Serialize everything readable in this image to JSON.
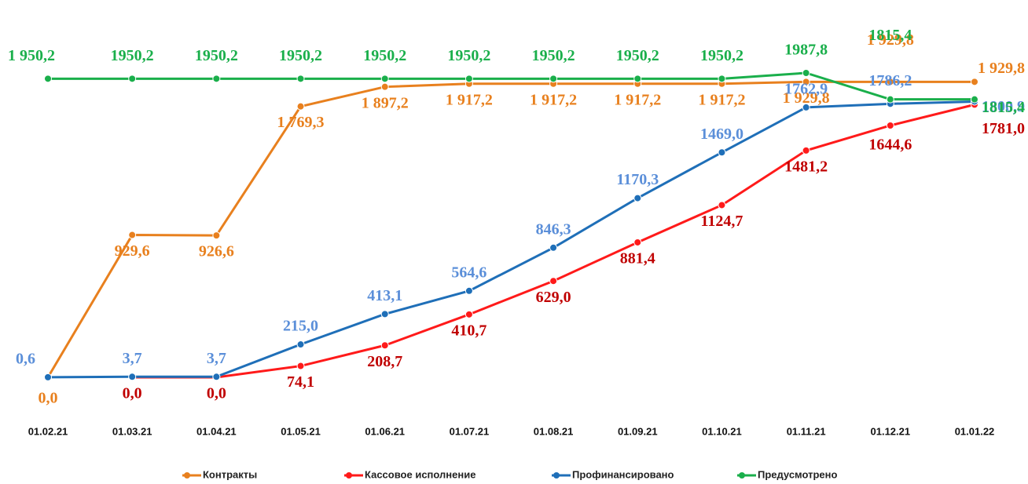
{
  "chart_data": {
    "type": "line",
    "categories": [
      "01.02.21",
      "01.03.21",
      "01.04.21",
      "01.05.21",
      "01.06.21",
      "01.07.21",
      "01.08.21",
      "01.09.21",
      "01.10.21",
      "01.11.21",
      "01.12.21",
      "01.01.22"
    ],
    "series": [
      {
        "name": "Контракты",
        "color": "#E8801E",
        "label_color": "#E8801E",
        "values": [
          0.0,
          929.6,
          926.6,
          1769.3,
          1897.2,
          1917.2,
          1917.2,
          1917.2,
          1917.2,
          1929.8,
          1929.8,
          1929.8
        ],
        "value_labels": [
          "0,0",
          "929,6",
          "926,6",
          "1 769,3",
          "1 897,2",
          "1 917,2",
          "1 917,2",
          "1 917,2",
          "1 917,2",
          "1 929,8",
          "1 929,8",
          "1 929,8"
        ]
      },
      {
        "name": "Кассовое исполнение",
        "color": "#FF1A1A",
        "label_color": "#C00000",
        "values": [
          null,
          0.0,
          0.0,
          74.1,
          208.7,
          410.7,
          629.0,
          881.4,
          1124.7,
          1481.2,
          1644.6,
          1781.0
        ],
        "value_labels": [
          null,
          "0,0",
          "0,0",
          "74,1",
          "208,7",
          "410,7",
          "629,0",
          "881,4",
          "1124,7",
          "1481,2",
          "1644,6",
          "1781,0"
        ]
      },
      {
        "name": "Профинансировано",
        "color": "#1F6FB8",
        "label_color": "#5B8FD9",
        "values": [
          0.6,
          3.7,
          3.7,
          215.0,
          413.1,
          564.6,
          846.3,
          1170.3,
          1469.0,
          1762.9,
          1786.2,
          1800.9
        ],
        "value_labels": [
          "0,6",
          "3,7",
          "3,7",
          "215,0",
          "413,1",
          "564,6",
          "846,3",
          "1170,3",
          "1469,0",
          "1762,9",
          "1786,2",
          "1800,9"
        ]
      },
      {
        "name": "Предусмотрено",
        "color": "#1AAF4B",
        "label_color": "#1AAF4B",
        "values": [
          1950.2,
          1950.2,
          1950.2,
          1950.2,
          1950.2,
          1950.2,
          1950.2,
          1950.2,
          1950.2,
          1987.8,
          1815.4,
          1815.4
        ],
        "value_labels": [
          "1 950,2",
          "1950,2",
          "1950,2",
          "1950,2",
          "1950,2",
          "1950,2",
          "1950,2",
          "1950,2",
          "1950,2",
          "1987,8",
          "1815,4",
          "1815,4"
        ]
      }
    ],
    "legend": "bottom"
  }
}
